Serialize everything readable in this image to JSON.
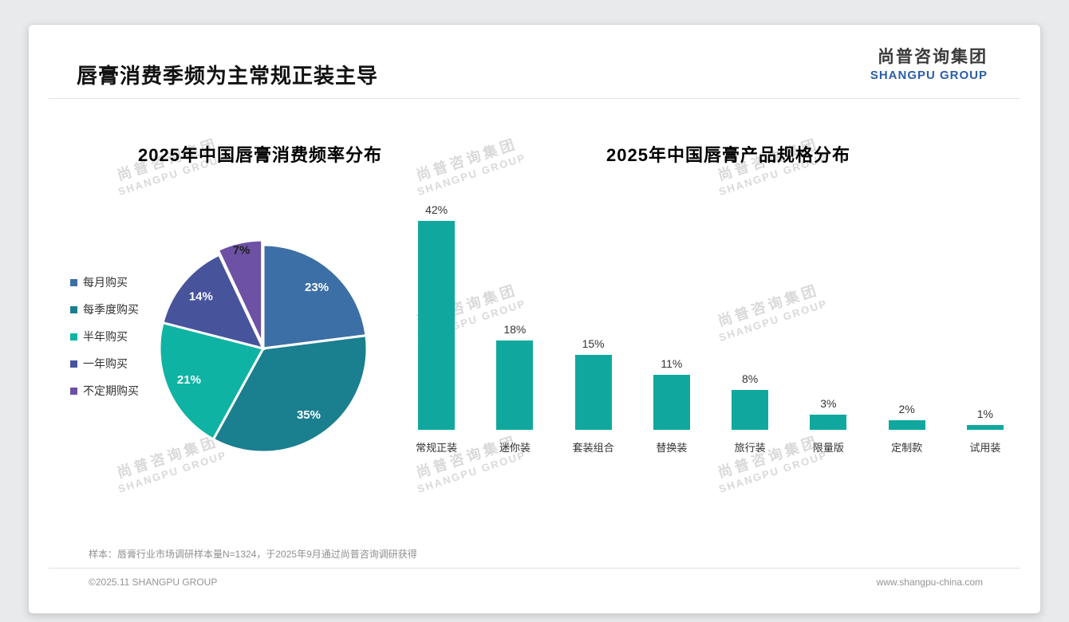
{
  "page": {
    "title": "唇膏消费季频为主常规正装主导",
    "logo": {
      "cn": "尚普咨询集团",
      "en": "SHANGPU GROUP"
    },
    "watermark": {
      "cn": "尚普咨询集团",
      "en": "SHANGPU GROUP"
    },
    "footer": {
      "note": "样本：唇膏行业市场调研样本量N=1324，于2025年9月通过尚普咨询调研获得",
      "copyright": "©2025.11 SHANGPU GROUP",
      "website": "www.shangpu-china.com"
    }
  },
  "chart_data": [
    {
      "type": "pie",
      "title": "2025年中国唇膏消费频率分布",
      "legend_position": "left",
      "slices": [
        {
          "label": "每月购买",
          "value": 23,
          "color": "#3C6FA5"
        },
        {
          "label": "每季度购买",
          "value": 35,
          "color": "#1A7F8E"
        },
        {
          "label": "半年购买",
          "value": 21,
          "color": "#0FB3A3"
        },
        {
          "label": "一年购买",
          "value": 14,
          "color": "#47549B"
        },
        {
          "label": "不定期购买",
          "value": 7,
          "color": "#6C51A4"
        }
      ],
      "value_suffix": "%"
    },
    {
      "type": "bar",
      "title": "2025年中国唇膏产品规格分布",
      "bar_color": "#10A89E",
      "categories": [
        "常规正装",
        "迷你装",
        "套装组合",
        "替换装",
        "旅行装",
        "限量版",
        "定制款",
        "试用装"
      ],
      "values": [
        42,
        18,
        15,
        11,
        8,
        3,
        2,
        1
      ],
      "value_suffix": "%",
      "ylim": [
        0,
        45
      ],
      "grid": false,
      "legend_position": "none"
    }
  ]
}
